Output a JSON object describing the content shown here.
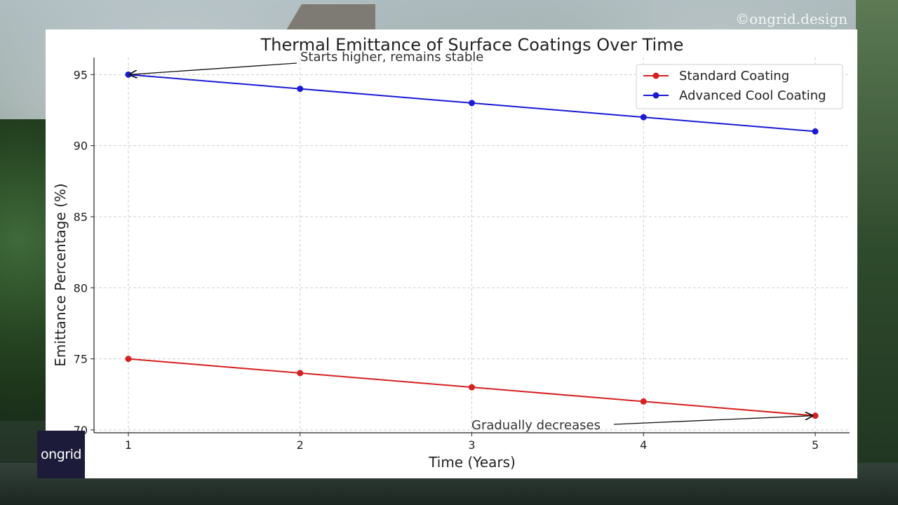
{
  "watermark": "©ongrid.design",
  "logo": "ongrid",
  "chart_data": {
    "type": "line",
    "title": "Thermal Emittance of Surface Coatings Over Time",
    "xlabel": "Time (Years)",
    "ylabel": "Emittance Percentage (%)",
    "x": [
      1,
      2,
      3,
      4,
      5
    ],
    "xlim": [
      0.8,
      5.2
    ],
    "ylim": [
      69.8,
      96.2
    ],
    "yticks": [
      70,
      75,
      80,
      85,
      90,
      95
    ],
    "grid": true,
    "legend_position": "top-right",
    "series": [
      {
        "name": "Standard Coating",
        "color": "#d62020",
        "values": [
          75,
          74,
          73,
          72,
          71
        ]
      },
      {
        "name": "Advanced Cool Coating",
        "color": "#1a1ad6",
        "values": [
          95,
          94,
          93,
          92,
          91
        ]
      }
    ],
    "annotations": [
      {
        "text": "Starts higher, remains stable",
        "x": 1,
        "y": 95
      },
      {
        "text": "Gradually decreases",
        "x": 5,
        "y": 71
      }
    ]
  }
}
